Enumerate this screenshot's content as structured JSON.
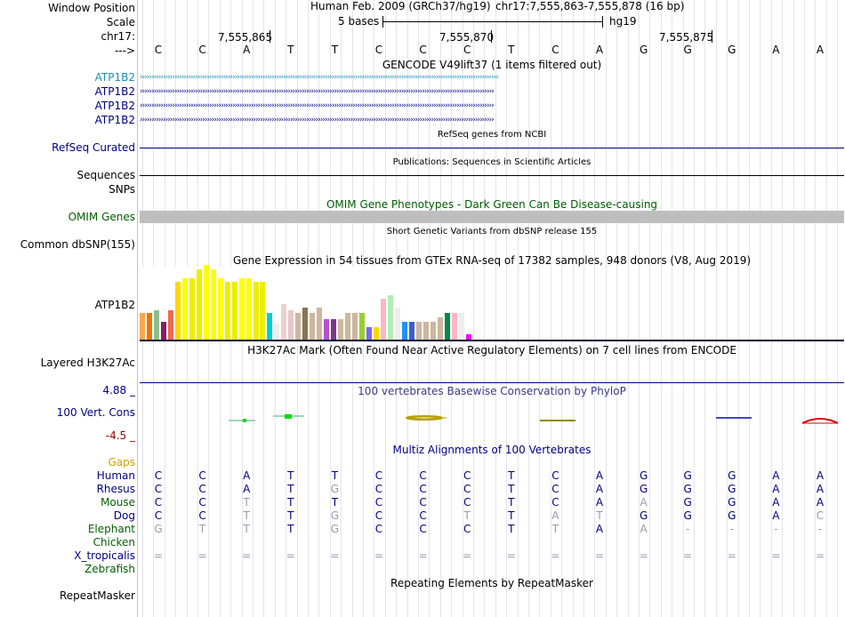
{
  "labels": {
    "window_position": "Window Position",
    "scale": "Scale",
    "chrom": "chr17:",
    "strand_arrow": "--->",
    "gene1": "ATP1B2",
    "gene2": "ATP1B2",
    "gene3": "ATP1B2",
    "gene4": "ATP1B2",
    "refseq": "RefSeq Curated",
    "sequences": "Sequences",
    "snps": "SNPs",
    "omim": "OMIM Genes",
    "common_dbsnp": "Common dbSNP(155)",
    "gtex_gene": "ATP1B2",
    "h3k27ac": "Layered H3K27Ac",
    "cons_max": "4.88 _",
    "cons": "100 Vert. Cons",
    "cons_min": "-4.5 _",
    "gaps": "Gaps",
    "repeatmasker": "RepeatMasker"
  },
  "header": {
    "assembly": "Human Feb. 2009 (GRCh37/hg19)",
    "position": "chr17:7,555,863-7,555,878 (16 bp)",
    "scale_text": "5 bases",
    "scale_db": "hg19",
    "ticks": [
      "7,555,865",
      "7,555,870",
      "7,555,875"
    ]
  },
  "bases": [
    "C",
    "C",
    "A",
    "T",
    "T",
    "C",
    "C",
    "C",
    "T",
    "C",
    "A",
    "G",
    "G",
    "G",
    "A",
    "A"
  ],
  "tracks": {
    "gencode": "GENCODE V49lift37 (1 items filtered out)",
    "refseq": "RefSeq genes from NCBI",
    "publications": "Publications: Sequences in Scientific Articles",
    "omim": "OMIM Gene Phenotypes - Dark Green Can Be Disease-causing",
    "dbsnp": "Short Genetic Variants from dbSNP release 155",
    "gtex": "Gene Expression in 54 tissues from GTEx RNA-seq of 17382 samples, 948 donors (V8, Aug 2019)",
    "h3k27ac": "H3K27Ac Mark (Often Found Near Active Regulatory Elements) on 7 cell lines from ENCODE",
    "phylop": "100 vertebrates Basewise Conservation by PhyloP",
    "multiz": "Multiz Alignments of 100 Vertebrates",
    "repeatmasker": "Repeating Elements by RepeatMasker"
  },
  "species": [
    {
      "name": "Human",
      "color": "#000080",
      "bases": [
        "C",
        "C",
        "A",
        "T",
        "T",
        "C",
        "C",
        "C",
        "T",
        "C",
        "A",
        "G",
        "G",
        "G",
        "A",
        "A"
      ]
    },
    {
      "name": "Rhesus",
      "color": "#000080",
      "bases": [
        "C",
        "C",
        "A",
        "T",
        "G",
        "C",
        "C",
        "C",
        "T",
        "C",
        "A",
        "G",
        "G",
        "G",
        "A",
        "A"
      ]
    },
    {
      "name": "Mouse",
      "color": "#006000",
      "bases": [
        "C",
        "C",
        "T",
        "T",
        "T",
        "C",
        "C",
        "C",
        "T",
        "C",
        "A",
        "A",
        "G",
        "G",
        "A",
        "A"
      ]
    },
    {
      "name": "Dog",
      "color": "#000080",
      "bases": [
        "C",
        "C",
        "T",
        "T",
        "G",
        "C",
        "C",
        "T",
        "T",
        "A",
        "T",
        "G",
        "G",
        "G",
        "A",
        "C"
      ]
    },
    {
      "name": "Elephant",
      "color": "#006000",
      "bases": [
        "G",
        "T",
        "T",
        "T",
        "G",
        "C",
        "C",
        "C",
        "T",
        "T",
        "A",
        "A",
        "-",
        "-",
        "-",
        "-"
      ]
    },
    {
      "name": "Chicken",
      "color": "#006000",
      "bases": []
    },
    {
      "name": "X_tropicalis",
      "color": "#000080",
      "bases": [
        "=",
        "=",
        "=",
        "=",
        "=",
        "=",
        "=",
        "=",
        "=",
        "=",
        "=",
        "=",
        "=",
        "=",
        "=",
        "="
      ]
    },
    {
      "name": "Zebrafish",
      "color": "#006000",
      "bases": []
    }
  ],
  "gtex_colors": [
    "#ffa54f",
    "#ee7600",
    "#8fbc8f",
    "#8b1c62",
    "#ee6a50",
    "#ffd700",
    "#ffff00",
    "#eeee00",
    "#eeee00",
    "#ffff00",
    "#ffff00",
    "#ffff00",
    "#eeee00",
    "#eeee00",
    "#ffff00",
    "#ffff00",
    "#eeee00",
    "#eeee00",
    "#00ced1",
    "#eeeeee",
    "#eecfcf",
    "#e6c8c8",
    "#cdb79e",
    "#8b7355",
    "#cdb79e",
    "#cdb79e",
    "#b452cd",
    "#7a378b",
    "#cdb79e",
    "#cdb79e",
    "#cdb79e",
    "#9acd32",
    "#7a67ee",
    "#ffd700",
    "#ffb6c1",
    "#b4eeb4",
    "#eeeeee",
    "#1e90ff",
    "#3a5fcd",
    "#cdb79e",
    "#cdb79e",
    "#cdb79e",
    "#cdb79e",
    "#008b45",
    "#ffb6c1",
    "#eeeeee",
    "#ff00ff"
  ],
  "gtex_values": [
    0.33,
    0.33,
    0.37,
    0.22,
    0.37,
    0.72,
    0.77,
    0.77,
    0.88,
    0.93,
    0.88,
    0.77,
    0.72,
    0.72,
    0.77,
    0.77,
    0.72,
    0.72,
    0.33,
    0.2,
    0.44,
    0.37,
    0.33,
    0.4,
    0.33,
    0.4,
    0.25,
    0.25,
    0.25,
    0.33,
    0.33,
    0.33,
    0.16,
    0.16,
    0.51,
    0.55,
    0.4,
    0.22,
    0.22,
    0.22,
    0.22,
    0.22,
    0.28,
    0.33,
    0.33,
    0.33,
    0.07
  ]
}
